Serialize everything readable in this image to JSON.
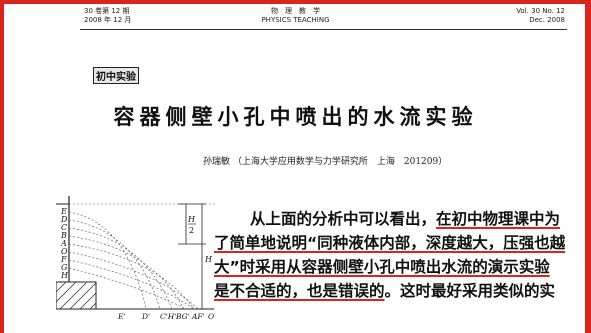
{
  "header": {
    "left_line1": "30 卷第 12 期",
    "left_line2": "2008 年 12 月",
    "center_line1": "物　理　教　学",
    "center_line2": "PHYSICS TEACHING",
    "right_line1": "Vol. 30 No. 12",
    "right_line2": "Dec. 2008"
  },
  "column_tag": "初中实验",
  "title": "容器侧壁小孔中喷出的水流实验",
  "author": "孙瑞敏 （上海大学应用数学与力学研究所　上海　201209）",
  "body": {
    "line1_a": "从上面的分析中可以看出，",
    "line1_b": "在初中物理课中为",
    "line2_a": "了简单地说明“同种液体内部，深度越大，压强也越",
    "line3_a": "大”时采用从容器侧壁小孔中喷出水流的演示实验",
    "line4_a": "是不合适的，也是错误的",
    "line4_b": "。这时最好采用类似的实"
  },
  "figure": {
    "left_labels": [
      "E",
      "D",
      "C",
      "B",
      "A",
      "O",
      "F",
      "G",
      "H"
    ],
    "bottom_labels": [
      "E'",
      "D'",
      "C'H'",
      "BG'",
      "AF'",
      "O"
    ],
    "h_half_label": "H",
    "h_half_den": "2",
    "h_label": "H"
  },
  "colors": {
    "frame": "#d9261c",
    "underline": "#d9261c"
  }
}
